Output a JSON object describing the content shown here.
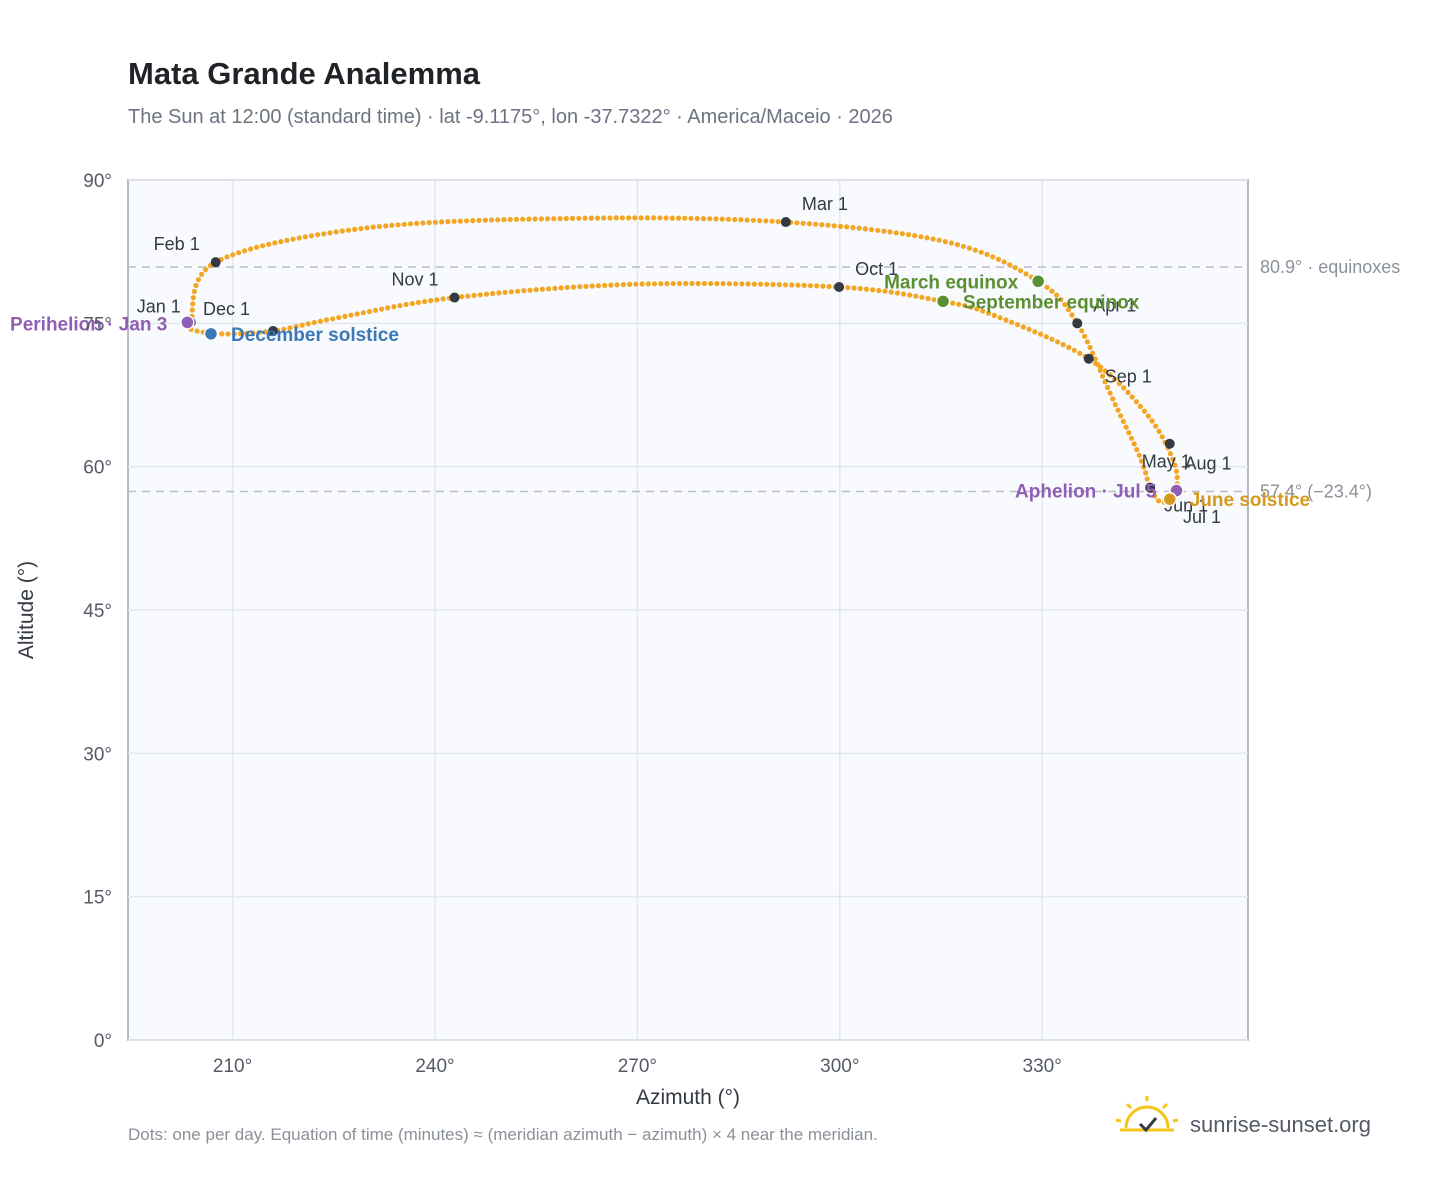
{
  "header": {
    "title": "Mata Grande Analemma",
    "subtitle": "The Sun at 12:00 (standard time) · lat -9.1175°, lon -37.7322° · America/Maceio · 2026"
  },
  "footer": {
    "note": "Dots: one per day. Equation of time (minutes) ≈ (meridian azimuth − azimuth) × 4 near the meridian.",
    "brand": "sunrise-sunset.org"
  },
  "colors": {
    "curve": "#f2a623",
    "month_marker": "#333a44",
    "perihelion": "#8e5fb5",
    "aphelion": "#8e5fb5",
    "december_solstice": "#3a78b8",
    "june_solstice": "#d49a1f",
    "equinox": "#5a8f32",
    "plot_bg": "#f8fafd",
    "grid": "#e2e7ee",
    "ref_line": "#b8bdc6"
  },
  "chart_data": {
    "type": "scatter",
    "xlabel": "Azimuth (°)",
    "ylabel": "Altitude (°)",
    "xlim": [
      194.5,
      360.5
    ],
    "ylim": [
      0,
      90
    ],
    "x_ticks": [
      "210°",
      "240°",
      "270°",
      "300°",
      "330°"
    ],
    "y_ticks": [
      "0°",
      "15°",
      "30°",
      "45°",
      "60°",
      "75°",
      "90°"
    ],
    "x_tick_values": [
      210,
      240,
      270,
      300,
      330
    ],
    "y_tick_values": [
      0,
      15,
      30,
      45,
      60,
      75,
      90
    ],
    "grid": true,
    "reference_lines": [
      {
        "altitude": 80.9,
        "label": "80.9° · equinoxes"
      },
      {
        "altitude": 57.4,
        "label": "57.4° (−23.4°)"
      }
    ],
    "month_markers": [
      {
        "label": "Jan 1",
        "az": 203.8,
        "alt": 75.1
      },
      {
        "label": "Feb 1",
        "az": 207.5,
        "alt": 81.4
      },
      {
        "label": "Mar 1",
        "az": 292.0,
        "alt": 85.6
      },
      {
        "label": "Apr 1",
        "az": 335.2,
        "alt": 75.0
      },
      {
        "label": "May 1",
        "az": 348.9,
        "alt": 62.4
      },
      {
        "label": "Jun 1",
        "az": 346.0,
        "alt": 57.8
      },
      {
        "label": "Jul 1",
        "az": 348.8,
        "alt": 56.6
      },
      {
        "label": "Aug 1",
        "az": 349.9,
        "alt": 57.4
      },
      {
        "label": "Sep 1",
        "az": 336.9,
        "alt": 71.3
      },
      {
        "label": "Oct 1",
        "az": 299.9,
        "alt": 78.8
      },
      {
        "label": "Nov 1",
        "az": 242.9,
        "alt": 77.7
      },
      {
        "label": "Dec 1",
        "az": 216.0,
        "alt": 74.2
      }
    ],
    "events": [
      {
        "label": "Perihelion · Jan 3",
        "az": 203.3,
        "alt": 75.1,
        "kind": "perihelion"
      },
      {
        "label": "December solstice",
        "az": 206.8,
        "alt": 73.9,
        "kind": "december_solstice"
      },
      {
        "label": "March equinox",
        "az": 329.4,
        "alt": 79.4,
        "kind": "equinox"
      },
      {
        "label": "September equinox",
        "az": 315.3,
        "alt": 77.3,
        "kind": "equinox"
      },
      {
        "label": "Aphelion · Jul 5",
        "az": 349.9,
        "alt": 57.5,
        "kind": "aphelion"
      },
      {
        "label": "June solstice",
        "az": 348.9,
        "alt": 56.6,
        "kind": "june_solstice"
      }
    ]
  }
}
